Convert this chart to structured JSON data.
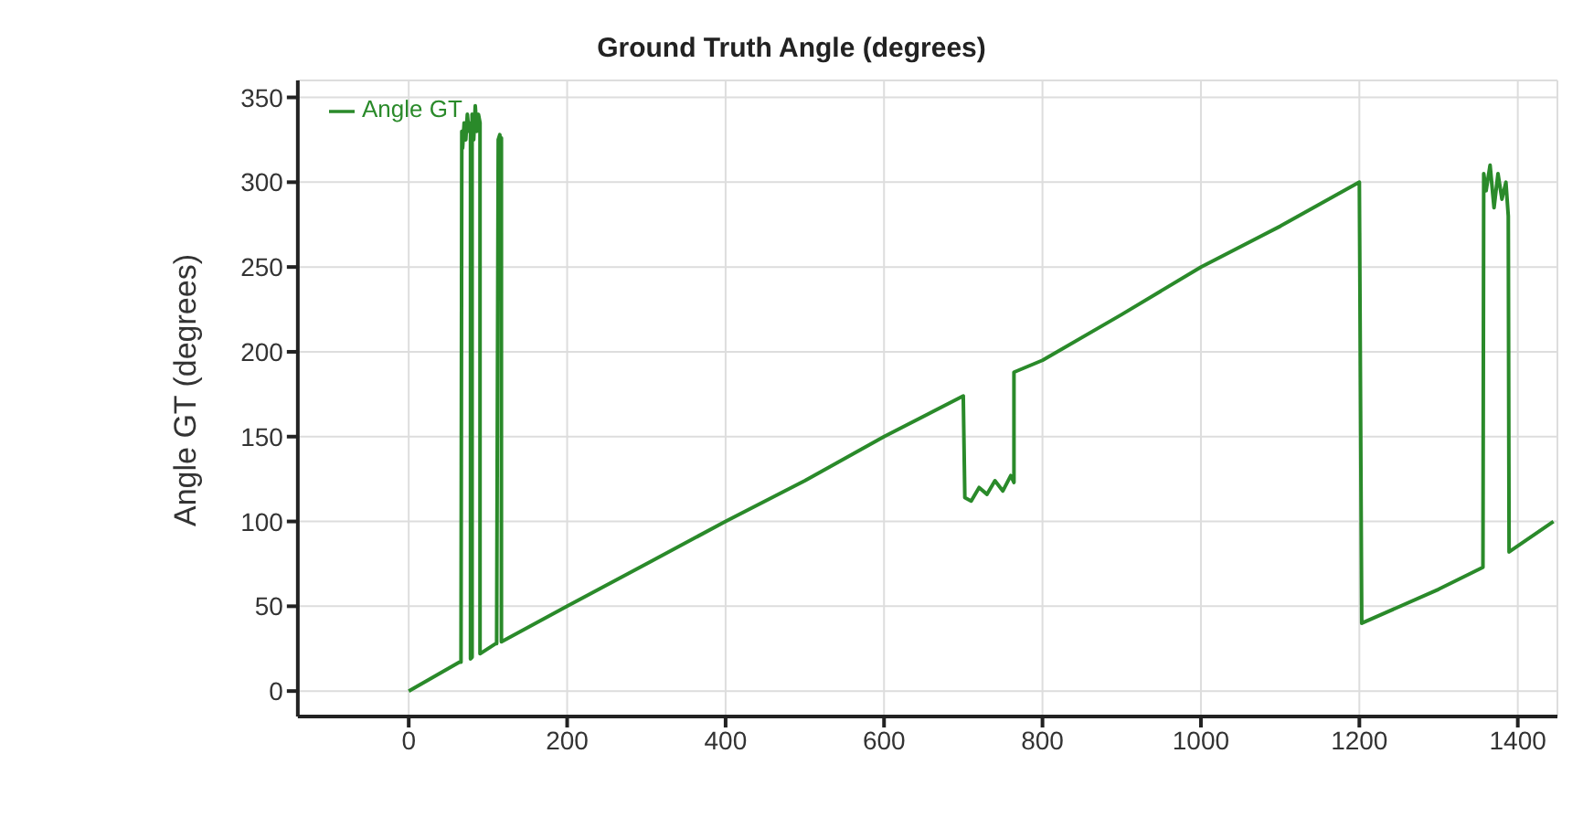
{
  "chart_data": {
    "type": "line",
    "title": "Ground Truth Angle (degrees)",
    "ylabel": "Angle GT (degrees)",
    "xlim": [
      -140,
      1450
    ],
    "xticks": [
      0,
      200,
      400,
      600,
      800,
      1000,
      1200,
      1400
    ],
    "ylim": [
      -15,
      360
    ],
    "yticks": [
      0,
      50,
      100,
      150,
      200,
      250,
      300,
      350
    ],
    "grid": true,
    "legend": "top left",
    "marker": "none",
    "line_style": "solid",
    "x": [
      0,
      64,
      66,
      67,
      68,
      70,
      72,
      74,
      76,
      78,
      78,
      80,
      80,
      82,
      84,
      86,
      88,
      90,
      90,
      110,
      111,
      113,
      115,
      116,
      117,
      117,
      200,
      300,
      400,
      500,
      600,
      700,
      702,
      710,
      720,
      730,
      740,
      750,
      760,
      764,
      764,
      800,
      900,
      1000,
      1100,
      1200,
      1203,
      1300,
      1356,
      1357,
      1360,
      1365,
      1370,
      1375,
      1380,
      1385,
      1388,
      1389,
      1445
    ],
    "series": [
      {
        "name": "Angle GT",
        "color": "#2a8a2a",
        "values": [
          0,
          17,
          17,
          330,
          320,
          335,
          325,
          340,
          330,
          335,
          19,
          20,
          340,
          325,
          345,
          330,
          340,
          335,
          22,
          28,
          28,
          325,
          328,
          320,
          326,
          29,
          50,
          75,
          100,
          124,
          150,
          174,
          114,
          112,
          120,
          116,
          124,
          118,
          127,
          123,
          188,
          195,
          222,
          250,
          274,
          300,
          40,
          60,
          73,
          305,
          295,
          310,
          285,
          305,
          290,
          300,
          280,
          82,
          100
        ]
      }
    ]
  }
}
